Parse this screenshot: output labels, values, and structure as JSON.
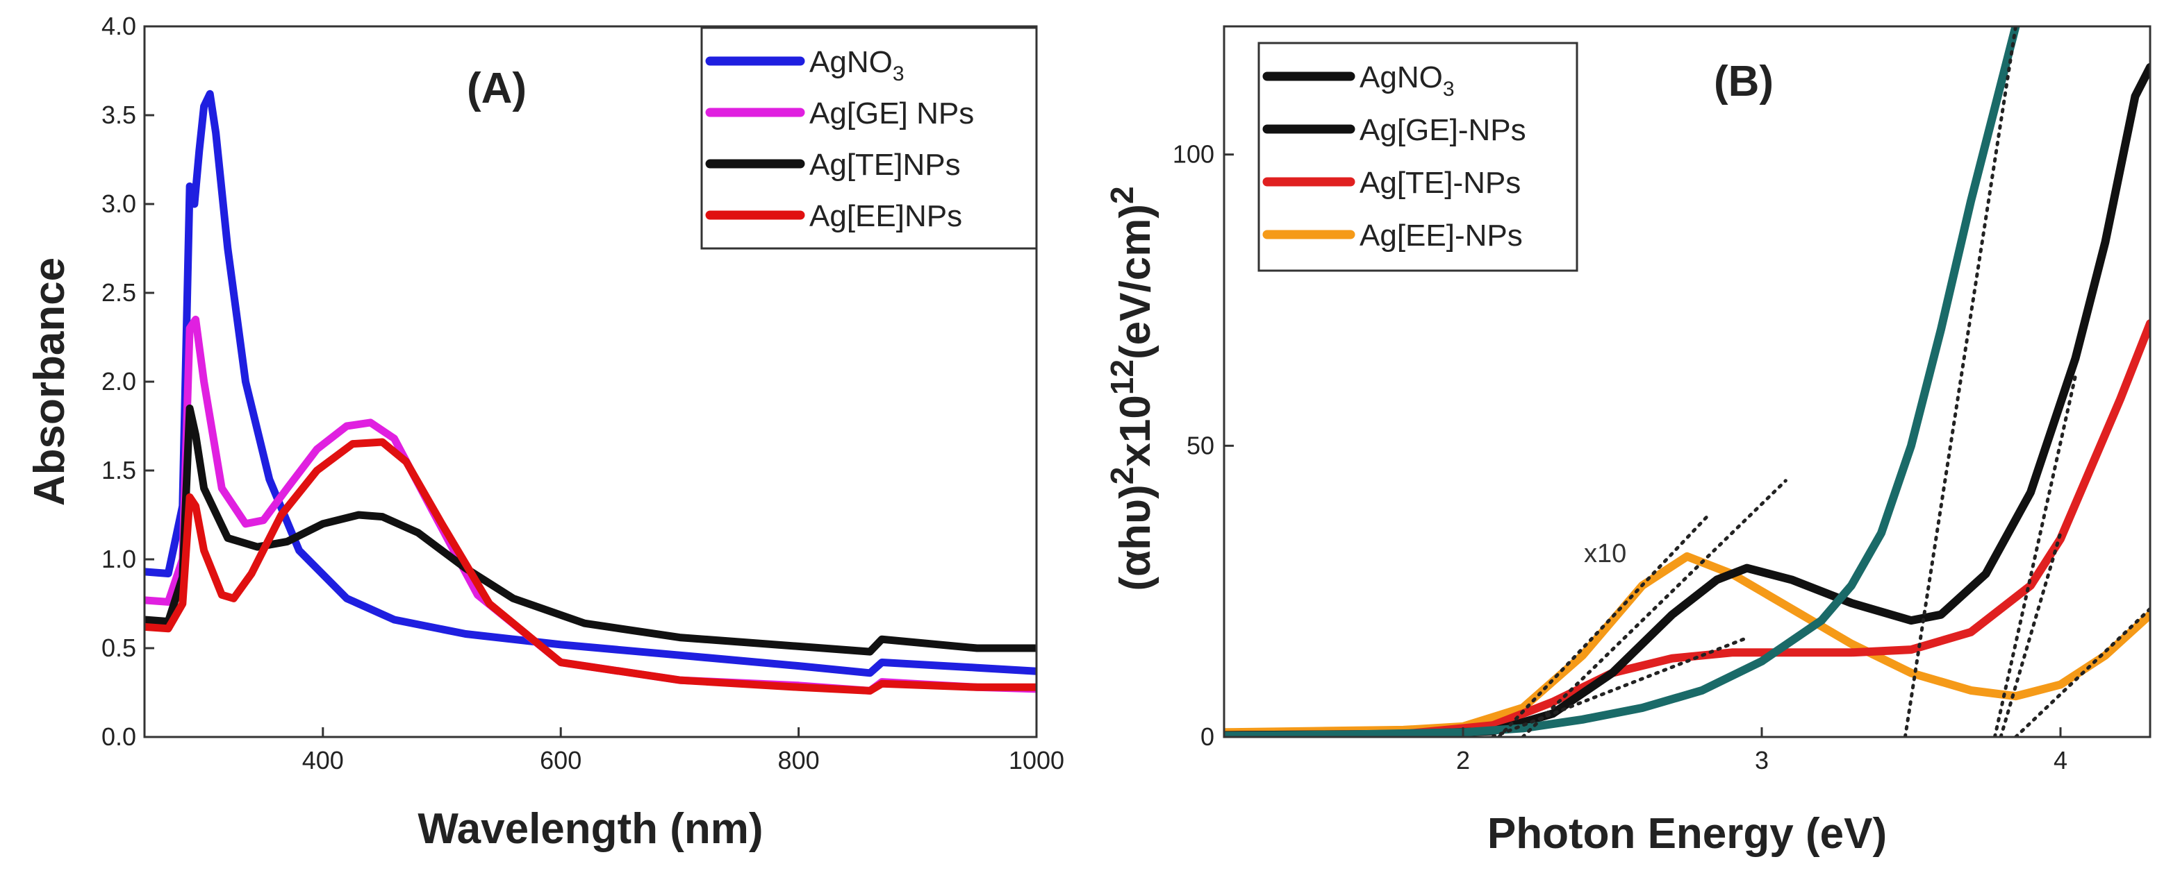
{
  "chart_data": [
    {
      "panel_label": "(A)",
      "type": "line",
      "xlabel": "Wavelength (nm)",
      "ylabel": "Absorbance",
      "xlim": [
        250,
        1000
      ],
      "ylim": [
        0.0,
        4.0
      ],
      "xticks": [
        400,
        600,
        800,
        1000
      ],
      "yticks": [
        "0.0",
        "0.5",
        "1.0",
        "1.5",
        "2.0",
        "2.5",
        "3.0",
        "3.5",
        "4.0"
      ],
      "legend_position": "top-right",
      "series": [
        {
          "name_main": "AgNO",
          "name_sub": "3",
          "color": "#1f1fe0",
          "x": [
            250,
            270,
            282,
            288,
            292,
            296,
            300,
            305,
            310,
            320,
            335,
            355,
            380,
            420,
            460,
            520,
            600,
            700,
            800,
            860,
            870,
            950,
            1000
          ],
          "y": [
            0.93,
            0.92,
            1.3,
            3.1,
            3.0,
            3.3,
            3.55,
            3.62,
            3.4,
            2.75,
            2.0,
            1.45,
            1.05,
            0.78,
            0.66,
            0.58,
            0.52,
            0.46,
            0.4,
            0.36,
            0.42,
            0.39,
            0.37
          ]
        },
        {
          "name_main": "Ag[GE] NPs",
          "name_sub": "",
          "color": "#e020e0",
          "x": [
            250,
            270,
            282,
            288,
            293,
            300,
            315,
            335,
            350,
            370,
            395,
            420,
            440,
            460,
            490,
            530,
            600,
            700,
            800,
            860,
            870,
            950,
            1000
          ],
          "y": [
            0.77,
            0.76,
            1.0,
            2.3,
            2.35,
            2.0,
            1.4,
            1.2,
            1.22,
            1.4,
            1.62,
            1.75,
            1.77,
            1.68,
            1.3,
            0.8,
            0.42,
            0.32,
            0.29,
            0.26,
            0.31,
            0.28,
            0.27
          ]
        },
        {
          "name_main": "Ag[TE]NPs",
          "name_sub": "",
          "color": "#111111",
          "x": [
            250,
            270,
            282,
            288,
            293,
            300,
            320,
            345,
            370,
            400,
            430,
            450,
            480,
            520,
            560,
            620,
            700,
            800,
            860,
            870,
            950,
            1000
          ],
          "y": [
            0.66,
            0.65,
            0.9,
            1.85,
            1.7,
            1.4,
            1.12,
            1.07,
            1.1,
            1.2,
            1.25,
            1.24,
            1.15,
            0.95,
            0.78,
            0.64,
            0.56,
            0.51,
            0.48,
            0.55,
            0.5,
            0.5
          ]
        },
        {
          "name_main": "Ag[EE]NPs",
          "name_sub": "",
          "color": "#e01010",
          "x": [
            250,
            270,
            282,
            288,
            293,
            300,
            315,
            325,
            340,
            365,
            395,
            425,
            450,
            470,
            500,
            540,
            600,
            700,
            800,
            860,
            870,
            950,
            1000
          ],
          "y": [
            0.62,
            0.61,
            0.75,
            1.35,
            1.3,
            1.05,
            0.8,
            0.78,
            0.92,
            1.25,
            1.5,
            1.65,
            1.66,
            1.55,
            1.2,
            0.75,
            0.42,
            0.32,
            0.28,
            0.26,
            0.3,
            0.28,
            0.28
          ]
        }
      ]
    },
    {
      "panel_label": "(B)",
      "type": "line",
      "xlabel": "Photon Energy (eV)",
      "ylabel_parts": {
        "alpha": "α",
        "hv": "hυ",
        "sup2": "2",
        "times10": "x10",
        "sup12": "12",
        "unit": "(eV/cm)",
        "unit_sup": "2"
      },
      "xlim": [
        1.2,
        4.3
      ],
      "ylim": [
        0,
        122
      ],
      "xticks": [
        "2",
        "3",
        "4"
      ],
      "yticks": [
        "0",
        "50",
        "100"
      ],
      "annotation": "x10",
      "legend_position": "top-left",
      "series": [
        {
          "name_main": "AgNO",
          "name_sub": "3",
          "color": "#1a6a68",
          "x": [
            1.2,
            1.6,
            2.0,
            2.2,
            2.4,
            2.6,
            2.8,
            3.0,
            3.2,
            3.3,
            3.4,
            3.5,
            3.6,
            3.7,
            3.8,
            3.85
          ],
          "y": [
            0.2,
            0.4,
            0.8,
            1.5,
            3,
            5,
            8,
            13,
            20,
            26,
            35,
            50,
            70,
            92,
            112,
            122
          ]
        },
        {
          "name_main": "Ag[GE]-NPs",
          "name_sub": "",
          "color": "#111111",
          "x": [
            1.2,
            1.8,
            2.1,
            2.3,
            2.5,
            2.7,
            2.85,
            2.95,
            3.1,
            3.3,
            3.5,
            3.6,
            3.75,
            3.9,
            4.05,
            4.15,
            4.25,
            4.3
          ],
          "y": [
            0.3,
            0.5,
            1,
            4,
            11,
            21,
            27,
            29,
            27,
            23,
            20,
            21,
            28,
            42,
            65,
            85,
            110,
            115
          ]
        },
        {
          "name_main": "Ag[TE]-NPs",
          "name_sub": "",
          "color": "#e02020",
          "x": [
            1.2,
            1.8,
            2.1,
            2.3,
            2.5,
            2.7,
            2.9,
            3.1,
            3.3,
            3.5,
            3.7,
            3.9,
            4.0,
            4.1,
            4.2,
            4.3
          ],
          "y": [
            0.3,
            0.5,
            2,
            6,
            11,
            13.5,
            14.5,
            14.5,
            14.5,
            15,
            18,
            26,
            34,
            46,
            58,
            71
          ]
        },
        {
          "name_main": "Ag[EE]-NPs",
          "name_sub": "",
          "color": "#f59a18",
          "x": [
            1.2,
            1.5,
            1.8,
            2.0,
            2.2,
            2.4,
            2.6,
            2.75,
            2.9,
            3.1,
            3.3,
            3.5,
            3.7,
            3.85,
            4.0,
            4.15,
            4.3
          ],
          "y": [
            0.8,
            1,
            1.2,
            1.8,
            5,
            14,
            26,
            31,
            28,
            22,
            16,
            11,
            8,
            7,
            9,
            14,
            21
          ]
        }
      ],
      "fits": [
        {
          "x": [
            2.12,
            2.82
          ],
          "y": [
            0,
            38
          ]
        },
        {
          "x": [
            2.2,
            3.08
          ],
          "y": [
            0,
            44
          ]
        },
        {
          "x": [
            2.1,
            2.95
          ],
          "y": [
            0,
            17
          ]
        },
        {
          "x": [
            3.48,
            3.85
          ],
          "y": [
            0,
            122
          ]
        },
        {
          "x": [
            3.78,
            4.05
          ],
          "y": [
            0,
            62
          ]
        },
        {
          "x": [
            3.8,
            4.0
          ],
          "y": [
            0,
            35
          ]
        },
        {
          "x": [
            3.85,
            4.3
          ],
          "y": [
            0,
            22
          ]
        }
      ]
    }
  ]
}
